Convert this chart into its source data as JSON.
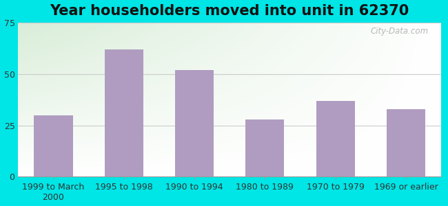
{
  "title": "Year householders moved into unit in 62370",
  "categories": [
    "1999 to March\n2000",
    "1995 to 1998",
    "1990 to 1994",
    "1980 to 1989",
    "1970 to 1979",
    "1969 or earlier"
  ],
  "values": [
    30,
    62,
    52,
    28,
    37,
    33
  ],
  "bar_color": "#b09cc0",
  "background_outer": "#00e5e5",
  "background_plot_topleft": "#d8edd8",
  "background_plot_white": "#ffffff",
  "ylim": [
    0,
    75
  ],
  "yticks": [
    0,
    25,
    50,
    75
  ],
  "title_fontsize": 15,
  "tick_fontsize": 9,
  "watermark": "City-Data.com",
  "grid_color": "#cccccc"
}
